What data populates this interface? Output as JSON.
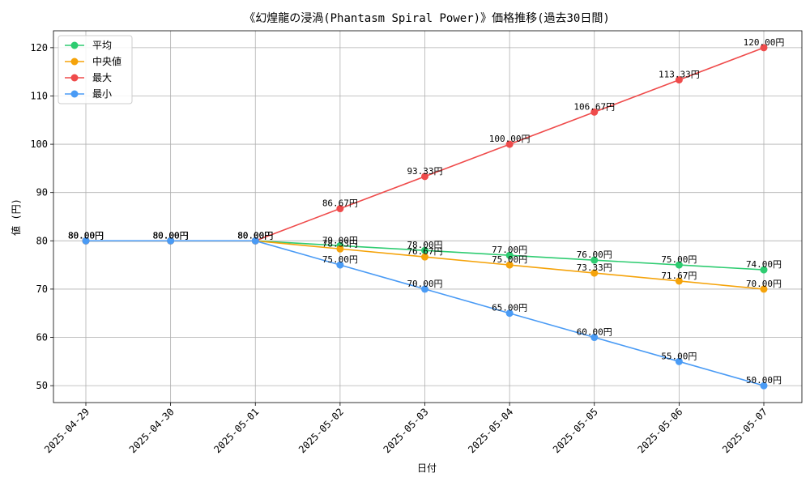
{
  "chart_data": {
    "type": "line",
    "title": "《幻煌龍の浸渦(Phantasm Spiral Power)》価格推移(過去30日間)",
    "xlabel": "日付",
    "ylabel": "値 (円)",
    "ylim": [
      46.5,
      123.5
    ],
    "yticks": [
      50,
      60,
      70,
      80,
      90,
      100,
      110,
      120
    ],
    "grid": true,
    "legend_position": "top-left",
    "x": [
      "2025-04-29",
      "2025-04-30",
      "2025-05-01",
      "2025-05-02",
      "2025-05-03",
      "2025-05-04",
      "2025-05-05",
      "2025-05-06",
      "2025-05-07"
    ],
    "series": [
      {
        "name": "平均",
        "color": "#2ecc71",
        "values": [
          80,
          80,
          80,
          79,
          78,
          77,
          76,
          75,
          74
        ],
        "labels": [
          "80.00円",
          "80.00円",
          "80.00円",
          "79.00円",
          "78.00円",
          "77.00円",
          "76.00円",
          "75.00円",
          "74.00円"
        ]
      },
      {
        "name": "中央値",
        "color": "#f5a30a",
        "values": [
          80,
          80,
          80,
          78.33,
          76.67,
          75,
          73.33,
          71.67,
          70
        ],
        "labels": [
          "80.00円",
          "80.00円",
          "80.00円",
          "78.33円",
          "76.67円",
          "75.00円",
          "73.33円",
          "71.67円",
          "70.00円"
        ]
      },
      {
        "name": "最大",
        "color": "#ef4b4b",
        "values": [
          80,
          80,
          80,
          86.67,
          93.33,
          100,
          106.67,
          113.33,
          120
        ],
        "labels": [
          "80.00円",
          "80.00円",
          "80.00円",
          "86.67円",
          "93.33円",
          "100.00円",
          "106.67円",
          "113.33円",
          "120.00円"
        ]
      },
      {
        "name": "最小",
        "color": "#4a9bf5",
        "values": [
          80,
          80,
          80,
          75,
          70,
          65,
          60,
          55,
          50
        ],
        "labels": [
          "80.00円",
          "80.00円",
          "80.00円",
          "75.00円",
          "70.00円",
          "65.00円",
          "60.00円",
          "55.00円",
          "50.00円"
        ]
      }
    ]
  }
}
